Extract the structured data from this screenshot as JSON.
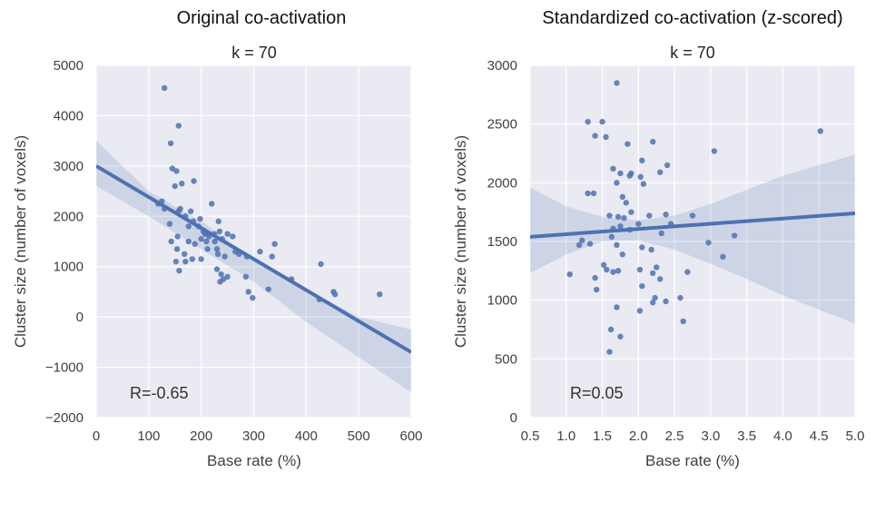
{
  "colors": {
    "panel_bg": "#EAEAF2",
    "grid": "#FFFFFF",
    "point": "#4C72B0",
    "line": "#4C72B0",
    "ci_band": "#4C72B0"
  },
  "chart_data": [
    {
      "type": "scatter",
      "suptitle": "Original co-activation",
      "title": "k = 70",
      "xlabel": "Base rate (%)",
      "ylabel": "Cluster size (number of voxels)",
      "xlim": [
        0,
        600
      ],
      "ylim": [
        -2000,
        5000
      ],
      "xticks": [
        0,
        100,
        200,
        300,
        400,
        500,
        600
      ],
      "yticks": [
        -2000,
        -1000,
        0,
        1000,
        2000,
        3000,
        4000,
        5000
      ],
      "x_tick_labels": [
        "0",
        "100",
        "200",
        "300",
        "400",
        "500",
        "600"
      ],
      "y_tick_labels": [
        "−2000",
        "−1000",
        "0",
        "1000",
        "2000",
        "3000",
        "4000",
        "5000"
      ],
      "grid": true,
      "annotation": "R=-0.65",
      "regression": {
        "x": [
          0,
          600
        ],
        "y": [
          3000,
          -700
        ]
      },
      "ci_band": {
        "x": [
          0,
          100,
          200,
          300,
          400,
          500,
          600
        ],
        "lower": [
          2600,
          2000,
          1350,
          700,
          -100,
          -800,
          -1500
        ],
        "upper": [
          3500,
          2500,
          1900,
          1150,
          550,
          0,
          -250
        ]
      },
      "points": [
        [
          130,
          4550
        ],
        [
          157,
          3800
        ],
        [
          142,
          3450
        ],
        [
          145,
          2950
        ],
        [
          153,
          2900
        ],
        [
          186,
          2700
        ],
        [
          163,
          2650
        ],
        [
          220,
          2250
        ],
        [
          150,
          2600
        ],
        [
          125,
          2300
        ],
        [
          130,
          2150
        ],
        [
          118,
          2250
        ],
        [
          160,
          2150
        ],
        [
          157,
          2100
        ],
        [
          180,
          2100
        ],
        [
          170,
          2000
        ],
        [
          198,
          1950
        ],
        [
          185,
          1900
        ],
        [
          233,
          1900
        ],
        [
          140,
          1850
        ],
        [
          176,
          1800
        ],
        [
          195,
          1800
        ],
        [
          204,
          1700
        ],
        [
          212,
          1650
        ],
        [
          215,
          1600
        ],
        [
          225,
          1650
        ],
        [
          235,
          1700
        ],
        [
          250,
          1650
        ],
        [
          240,
          1550
        ],
        [
          260,
          1600
        ],
        [
          265,
          1300
        ],
        [
          200,
          1550
        ],
        [
          210,
          1500
        ],
        [
          176,
          1500
        ],
        [
          188,
          1450
        ],
        [
          143,
          1500
        ],
        [
          155,
          1600
        ],
        [
          154,
          1350
        ],
        [
          168,
          1250
        ],
        [
          152,
          1100
        ],
        [
          183,
          1150
        ],
        [
          200,
          1150
        ],
        [
          230,
          1350
        ],
        [
          232,
          1250
        ],
        [
          245,
          1200
        ],
        [
          272,
          1250
        ],
        [
          287,
          1200
        ],
        [
          312,
          1300
        ],
        [
          340,
          1450
        ],
        [
          335,
          1200
        ],
        [
          230,
          950
        ],
        [
          238,
          850
        ],
        [
          242,
          750
        ],
        [
          236,
          700
        ],
        [
          250,
          800
        ],
        [
          285,
          800
        ],
        [
          290,
          500
        ],
        [
          298,
          380
        ],
        [
          328,
          550
        ],
        [
          372,
          750
        ],
        [
          425,
          350
        ],
        [
          428,
          1050
        ],
        [
          452,
          500
        ],
        [
          455,
          450
        ],
        [
          540,
          450
        ],
        [
          158,
          920
        ],
        [
          170,
          1100
        ],
        [
          212,
          1350
        ],
        [
          226,
          1500
        ],
        [
          207,
          1650
        ]
      ]
    },
    {
      "type": "scatter",
      "suptitle": "Standardized co-activation (z-scored)",
      "title": "k = 70",
      "xlabel": "Base rate (%)",
      "ylabel": "Cluster size (number of voxels)",
      "xlim": [
        0.5,
        5.0
      ],
      "ylim": [
        0,
        3000
      ],
      "xticks": [
        0.5,
        1.0,
        1.5,
        2.0,
        2.5,
        3.0,
        3.5,
        4.0,
        4.5,
        5.0
      ],
      "yticks": [
        0,
        500,
        1000,
        1500,
        2000,
        2500,
        3000
      ],
      "x_tick_labels": [
        "0.5",
        "1.0",
        "1.5",
        "2.0",
        "2.5",
        "3.0",
        "3.5",
        "4.0",
        "4.5",
        "5.0"
      ],
      "y_tick_labels": [
        "0",
        "500",
        "1000",
        "1500",
        "2000",
        "2500",
        "3000"
      ],
      "grid": true,
      "annotation": "R=0.05",
      "regression": {
        "x": [
          0.5,
          5.0
        ],
        "y": [
          1540,
          1740
        ]
      },
      "ci_band": {
        "x": [
          0.5,
          1.0,
          1.5,
          2.0,
          2.5,
          3.0,
          3.5,
          4.0,
          4.5,
          5.0
        ],
        "lower": [
          1230,
          1390,
          1500,
          1510,
          1430,
          1310,
          1180,
          1040,
          920,
          800
        ],
        "upper": [
          1960,
          1800,
          1710,
          1680,
          1720,
          1820,
          1940,
          2060,
          2150,
          2240
        ]
      },
      "points": [
        [
          1.7,
          2850
        ],
        [
          1.3,
          2520
        ],
        [
          1.5,
          2520
        ],
        [
          1.4,
          2400
        ],
        [
          1.55,
          2390
        ],
        [
          2.2,
          2350
        ],
        [
          1.85,
          2330
        ],
        [
          2.05,
          2190
        ],
        [
          1.65,
          2120
        ],
        [
          1.75,
          2080
        ],
        [
          1.88,
          2060
        ],
        [
          1.9,
          2080
        ],
        [
          2.3,
          2090
        ],
        [
          2.4,
          2150
        ],
        [
          3.05,
          2270
        ],
        [
          4.52,
          2440
        ],
        [
          2.03,
          2050
        ],
        [
          2.07,
          1990
        ],
        [
          1.7,
          2000
        ],
        [
          1.78,
          1880
        ],
        [
          1.3,
          1910
        ],
        [
          1.38,
          1910
        ],
        [
          1.83,
          1830
        ],
        [
          1.8,
          1700
        ],
        [
          1.9,
          1750
        ],
        [
          1.6,
          1720
        ],
        [
          1.72,
          1710
        ],
        [
          2.15,
          1720
        ],
        [
          2.75,
          1720
        ],
        [
          2.45,
          1650
        ],
        [
          2.0,
          1650
        ],
        [
          1.65,
          1610
        ],
        [
          1.88,
          1600
        ],
        [
          1.75,
          1630
        ],
        [
          2.38,
          1730
        ],
        [
          1.22,
          1510
        ],
        [
          1.33,
          1480
        ],
        [
          1.18,
          1470
        ],
        [
          1.7,
          1470
        ],
        [
          2.32,
          1570
        ],
        [
          1.52,
          1300
        ],
        [
          1.56,
          1260
        ],
        [
          1.78,
          1390
        ],
        [
          2.05,
          1450
        ],
        [
          2.18,
          1430
        ],
        [
          2.97,
          1490
        ],
        [
          3.33,
          1550
        ],
        [
          1.65,
          1240
        ],
        [
          1.72,
          1250
        ],
        [
          2.2,
          1230
        ],
        [
          2.02,
          1260
        ],
        [
          2.68,
          1240
        ],
        [
          3.17,
          1370
        ],
        [
          1.05,
          1220
        ],
        [
          1.4,
          1190
        ],
        [
          1.42,
          1090
        ],
        [
          2.05,
          1120
        ],
        [
          2.25,
          1280
        ],
        [
          2.3,
          1180
        ],
        [
          1.7,
          940
        ],
        [
          2.02,
          910
        ],
        [
          2.2,
          980
        ],
        [
          2.23,
          1020
        ],
        [
          2.38,
          990
        ],
        [
          2.58,
          1020
        ],
        [
          1.62,
          750
        ],
        [
          1.75,
          690
        ],
        [
          1.6,
          560
        ],
        [
          2.62,
          820
        ],
        [
          1.63,
          1540
        ]
      ]
    }
  ]
}
